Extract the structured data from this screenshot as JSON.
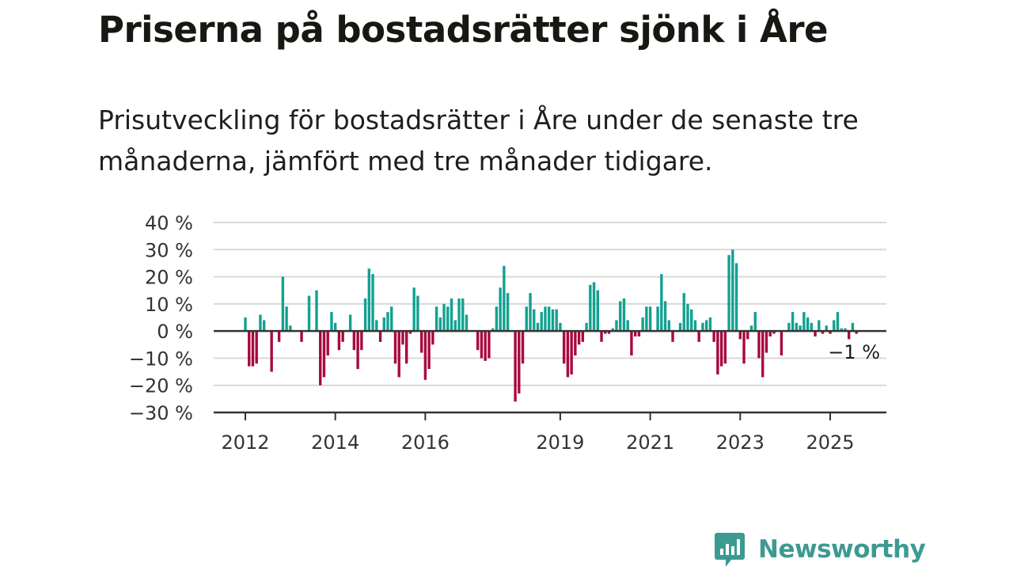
{
  "title": "Priserna på bostadsrätter sjönk i Åre",
  "subtitle": "Prisutveckling för bostadsrätter i Åre under de senaste tre månaderna, jämfört med tre månader tidigare.",
  "brand": {
    "name": "Newsworthy",
    "icon": "newsworthy-logo-icon",
    "color": "#3d9a91"
  },
  "colors": {
    "positive": "#12a191",
    "negative": "#a7093e",
    "grid": "#d9d9d9",
    "axis": "#333333"
  },
  "chart_data": {
    "type": "bar",
    "title": "",
    "xlabel": "",
    "ylabel": "",
    "ylim": [
      -30,
      40
    ],
    "y_ticks": [
      40,
      30,
      20,
      10,
      0,
      -10,
      -20,
      -30
    ],
    "y_tick_labels": [
      "40 %",
      "30 %",
      "20 %",
      "10 %",
      "0 %",
      "−10 %",
      "−20 %",
      "−30 %"
    ],
    "x_ticks": [
      {
        "label": "2012",
        "year": 2012
      },
      {
        "label": "2014",
        "year": 2014
      },
      {
        "label": "2016",
        "year": 2016
      },
      {
        "label": "2019",
        "year": 2019
      },
      {
        "label": "2021",
        "year": 2021
      },
      {
        "label": "2023",
        "year": 2023
      },
      {
        "label": "2025",
        "year": 2025
      }
    ],
    "grid": true,
    "last_value_label": "−1 %",
    "start_date": "2012-01",
    "values": [
      5,
      -13,
      -13,
      -12,
      6,
      4,
      0,
      -15,
      0,
      -4,
      20,
      9,
      2,
      0,
      0,
      -4,
      0,
      13,
      0,
      15,
      -20,
      -17,
      -9,
      7,
      3,
      -7,
      -4,
      0,
      6,
      -7,
      -14,
      -7,
      12,
      23,
      21,
      4,
      -4,
      5,
      7,
      9,
      -12,
      -17,
      -5,
      -12,
      -1,
      16,
      13,
      -8,
      -18,
      -14,
      -5,
      9,
      5,
      10,
      9,
      12,
      4,
      12,
      12,
      6,
      0,
      0,
      -7,
      -10,
      -11,
      -10,
      1,
      9,
      16,
      24,
      14,
      0,
      -26,
      -23,
      -12,
      9,
      14,
      8,
      3,
      7,
      9,
      9,
      8,
      8,
      3,
      -12,
      -17,
      -16,
      -9,
      -5,
      -4,
      3,
      17,
      18,
      15,
      -4,
      -1,
      -1,
      1,
      4,
      11,
      12,
      4,
      -9,
      -2,
      -2,
      5,
      9,
      9,
      0,
      9,
      21,
      11,
      4,
      -4,
      0,
      3,
      14,
      10,
      8,
      4,
      -4,
      3,
      4,
      5,
      -4,
      -16,
      -13,
      -12,
      28,
      30,
      25,
      -3,
      -12,
      -3,
      2,
      7,
      -10,
      -17,
      -8,
      -2,
      -1,
      0,
      -9,
      0,
      3,
      7,
      3,
      2,
      7,
      5,
      3,
      -2,
      4,
      -1,
      2,
      -1,
      4,
      7,
      1,
      1,
      -3,
      3,
      -1
    ]
  }
}
